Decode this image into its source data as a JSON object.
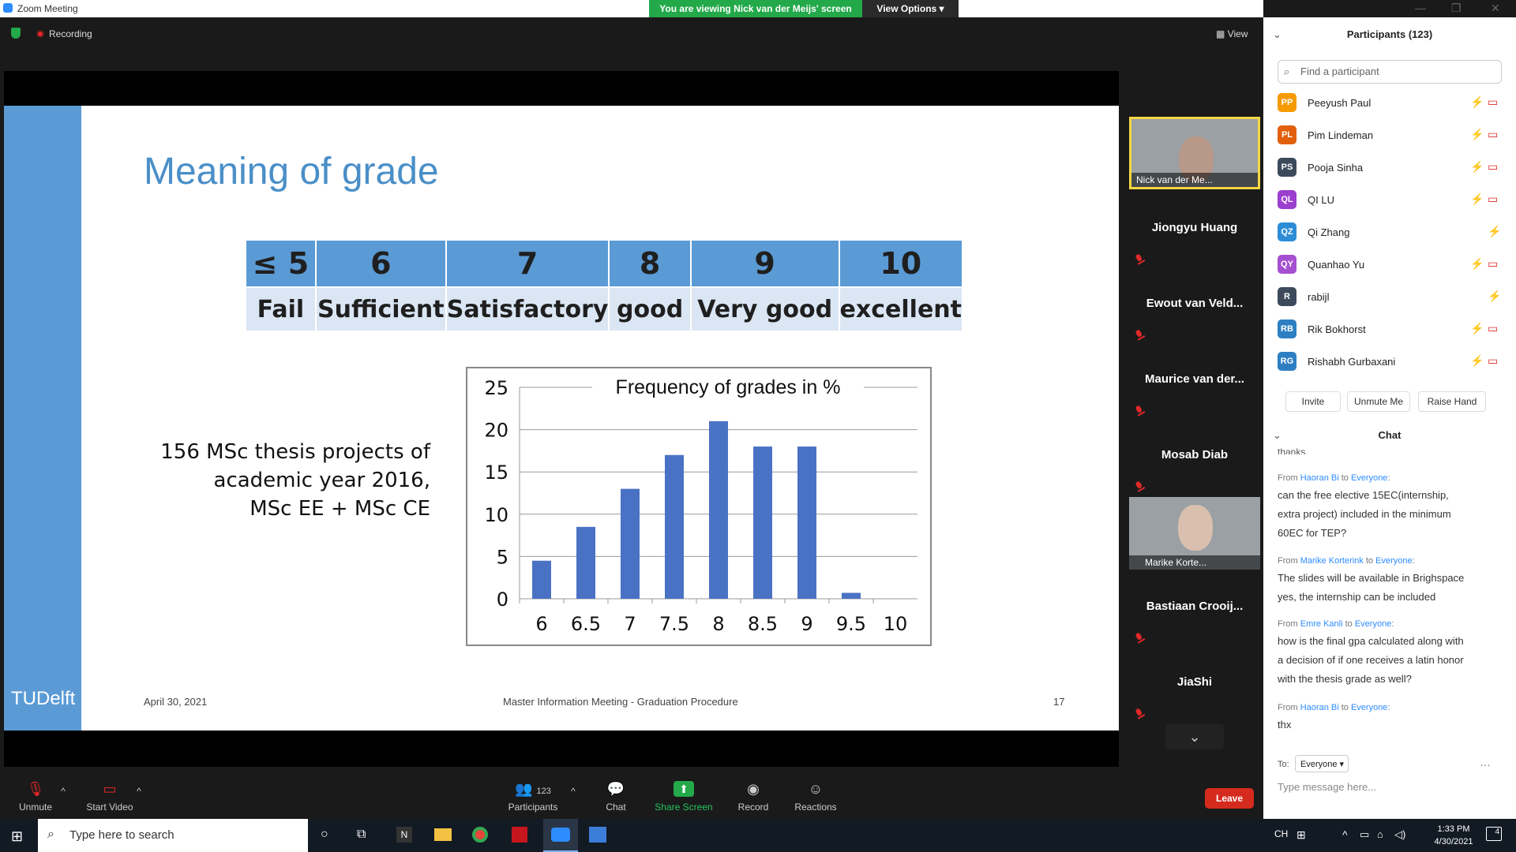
{
  "window": {
    "title": "Zoom Meeting",
    "viewing_banner": "You are viewing Nick van der Meijs' screen",
    "view_options": "View Options"
  },
  "topbar": {
    "recording": "Recording",
    "view": "View"
  },
  "slide": {
    "title": "Meaning of grade",
    "grades": [
      "≤ 5",
      "6",
      "7",
      "8",
      "9",
      "10"
    ],
    "labels": [
      "Fail",
      "Sufficient",
      "Satisfactory",
      "good",
      "Very good",
      "excellent"
    ],
    "projects_text": [
      "156 MSc thesis projects of",
      "academic year 2016,",
      "MSc EE + MSc CE"
    ],
    "date": "April 30, 2021",
    "footer": "Master Information Meeting - Graduation Procedure",
    "page": "17",
    "logo": "TUDelft"
  },
  "chart_data": {
    "type": "bar",
    "title": "Frequency of grades in %",
    "categories": [
      "6",
      "6.5",
      "7",
      "7.5",
      "8",
      "8.5",
      "9",
      "9.5",
      "10"
    ],
    "values": [
      4.5,
      8.5,
      13,
      17,
      21,
      18,
      18,
      0.7,
      0
    ],
    "ylim": [
      0,
      25
    ],
    "yticks": [
      "0",
      "5",
      "10",
      "15",
      "20",
      "25"
    ],
    "grid": true,
    "color": "#4a72c4"
  },
  "video_strip": {
    "tiles": [
      "Nick van der Me...",
      "Jiongyu Huang",
      "Ewout van Veld...",
      "Maurice van der...",
      "Mosab Diab",
      "Marike Korte...",
      "Bastiaan  Crooij...",
      "JiaShi"
    ]
  },
  "toolbar": {
    "unmute": "Unmute",
    "start_video": "Start Video",
    "participants": "Participants",
    "participant_count": "123",
    "chat": "Chat",
    "share_screen": "Share Screen",
    "record": "Record",
    "reactions": "Reactions",
    "leave": "Leave"
  },
  "participants_panel": {
    "title": "Participants (123)",
    "search_placeholder": "Find a participant",
    "people": [
      {
        "initials": "PP",
        "name": "Peeyush Paul",
        "color": "#f59b00"
      },
      {
        "initials": "PL",
        "name": "Pim Lindeman",
        "color": "#e2600d"
      },
      {
        "initials": "PS",
        "name": "Pooja Sinha",
        "color": "#3d4a5c"
      },
      {
        "initials": "QL",
        "name": "QI LU",
        "color": "#9b3fcf"
      },
      {
        "initials": "QZ",
        "name": "Qi Zhang",
        "color": "#2d8cd6"
      },
      {
        "initials": "QY",
        "name": "Quanhao Yu",
        "color": "#a64fd1"
      },
      {
        "initials": "R",
        "name": "rabijl",
        "color": "#3d4a5c"
      },
      {
        "initials": "RB",
        "name": "Rik Bokhorst",
        "color": "#2d7fc1"
      },
      {
        "initials": "RG",
        "name": "Rishabh Gurbaxani",
        "color": "#2d7fc1"
      }
    ],
    "buttons": [
      "Invite",
      "Unmute Me",
      "Raise Hand"
    ]
  },
  "chat": {
    "title": "Chat",
    "partial_top": "thanks.",
    "messages": [
      {
        "from": "Haoran Bi",
        "to": "Everyone",
        "lines": [
          "can the free elective 15EC(internship,",
          "extra project) included in the minimum",
          "60EC for TEP?"
        ]
      },
      {
        "from": "Marike Korterink",
        "to": "Everyone",
        "lines": [
          "The slides will be available in Brighspace",
          "yes, the internship can be included"
        ]
      },
      {
        "from": "Emre Kanli",
        "to": "Everyone",
        "lines": [
          "how is the final gpa calculated along with",
          "a decision of if one receives a latin honor",
          "with the thesis grade as well?"
        ]
      },
      {
        "from": "Haoran Bi",
        "to": "Everyone",
        "lines": [
          "thx"
        ]
      }
    ],
    "to_label": "To:",
    "to_value": "Everyone",
    "input_placeholder": "Type message here..."
  },
  "taskbar": {
    "search": "Type here to search",
    "time": "1:33 PM",
    "date": "4/30/2021",
    "lang": "CH",
    "notif": "4"
  }
}
